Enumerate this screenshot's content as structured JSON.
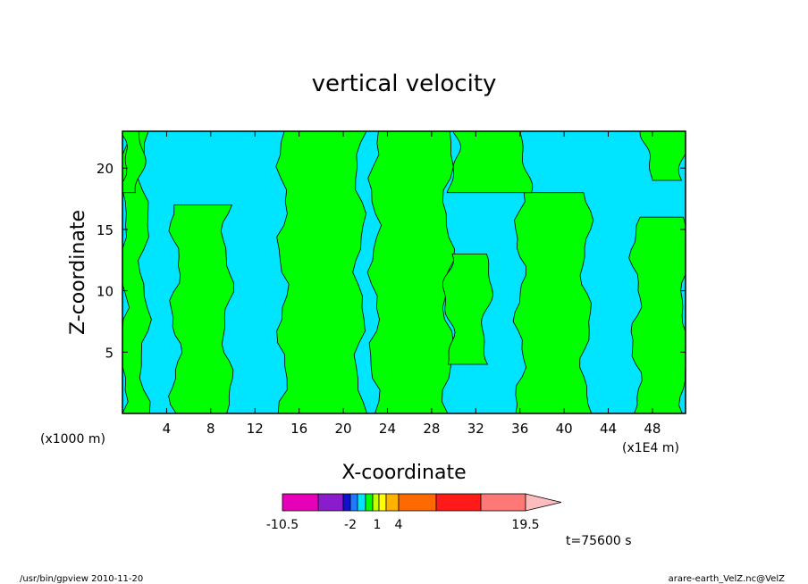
{
  "chart_data": {
    "type": "heatmap",
    "title": "vertical velocity",
    "xlabel": "X-coordinate",
    "ylabel": "Z-coordinate",
    "x_unit_left": "(x1000 m)",
    "x_unit_right": "(x1E4 m)",
    "xlim": [
      0,
      51
    ],
    "ylim": [
      0,
      23
    ],
    "x_ticks": [
      4,
      8,
      12,
      16,
      20,
      24,
      28,
      32,
      36,
      40,
      44,
      48
    ],
    "y_ticks": [
      5,
      10,
      15,
      20
    ],
    "x_tick_labels": [
      "4",
      "8",
      "12",
      "16",
      "20",
      "24",
      "28",
      "32",
      "36",
      "40",
      "44",
      "48"
    ],
    "y_tick_labels": [
      "5",
      "10",
      "15",
      "20"
    ],
    "background_color": "#00e5ff",
    "upward_color": "#00ff00",
    "upward_regions": [
      {
        "x0": 0,
        "x1": 2.0,
        "profile": [
          [
            0,
            0
          ],
          [
            23,
            0
          ]
        ]
      },
      {
        "x0": 0,
        "x1": 1.5,
        "profile": [
          [
            18,
            0
          ],
          [
            23,
            0
          ]
        ]
      },
      {
        "x0": 4.8,
        "x1": 9.5,
        "profile": [
          [
            0,
            0
          ],
          [
            15,
            0
          ],
          [
            17,
            0
          ]
        ]
      },
      {
        "x0": 14.5,
        "x1": 21.5,
        "profile": [
          [
            0,
            0
          ],
          [
            23,
            0
          ]
        ]
      },
      {
        "x0": 22.8,
        "x1": 29.5,
        "profile": [
          [
            0,
            0
          ],
          [
            23,
            0
          ]
        ]
      },
      {
        "x0": 29.5,
        "x1": 33.0,
        "profile": [
          [
            4,
            0
          ],
          [
            13,
            0
          ]
        ]
      },
      {
        "x0": 36.0,
        "x1": 42.0,
        "profile": [
          [
            0,
            0
          ],
          [
            18,
            0
          ]
        ]
      },
      {
        "x0": 46.5,
        "x1": 51.0,
        "profile": [
          [
            0,
            0
          ],
          [
            16,
            0
          ]
        ]
      },
      {
        "x0": 30.0,
        "x1": 36.5,
        "profile": [
          [
            18,
            0
          ],
          [
            23,
            0
          ]
        ]
      },
      {
        "x0": 47.5,
        "x1": 51.0,
        "profile": [
          [
            19,
            0
          ],
          [
            23,
            0
          ]
        ]
      }
    ],
    "colorbar": {
      "colors": [
        "#e600b8",
        "#8a1ccc",
        "#1010d0",
        "#1e7aff",
        "#00e5ff",
        "#00ff00",
        "#c8ff00",
        "#ffff00",
        "#ffb300",
        "#ff6a00",
        "#ff1a1a",
        "#ff7878",
        "#ffbcbc"
      ],
      "labels": [
        "-10.5",
        "-2",
        "1",
        "4",
        "19.5"
      ]
    },
    "time_label": "t=75600 s"
  },
  "footer": {
    "left": "/usr/bin/gpview   2010-11-20",
    "right": "arare-earth_VelZ.nc@VelZ"
  }
}
